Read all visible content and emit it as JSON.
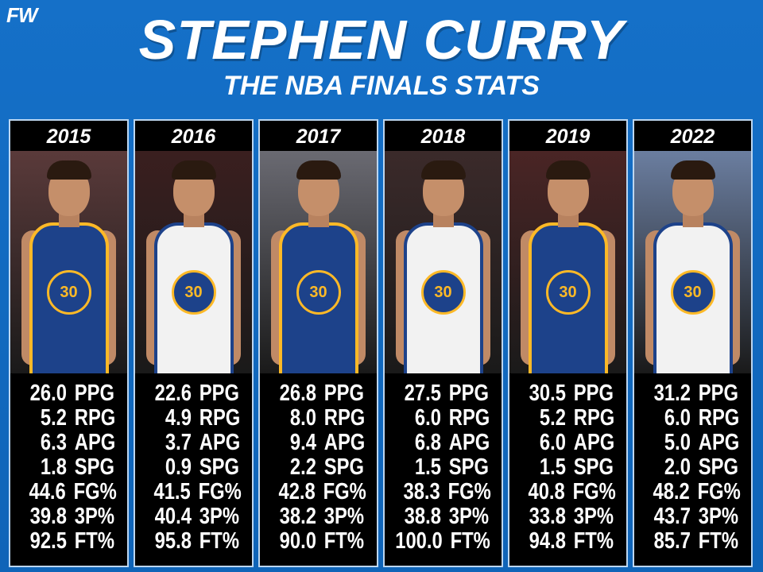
{
  "logo": "FW",
  "title": "STEPHEN CURRY",
  "subtitle": "THE NBA FINALS STATS",
  "colors": {
    "background": "#1570c8",
    "panel": "#000000",
    "text": "#ffffff",
    "jersey_blue": "#1d428a",
    "jersey_gold": "#fdb927",
    "jersey_white": "#f2f2f2"
  },
  "stat_labels": [
    "PPG",
    "RPG",
    "APG",
    "SPG",
    "FG%",
    "3P%",
    "FT%"
  ],
  "seasons": [
    {
      "year": "2015",
      "jersey": "blue",
      "stats": [
        "26.0",
        "5.2",
        "6.3",
        "1.8",
        "44.6",
        "39.8",
        "92.5"
      ]
    },
    {
      "year": "2016",
      "jersey": "white",
      "stats": [
        "22.6",
        "4.9",
        "3.7",
        "0.9",
        "41.5",
        "40.4",
        "95.8"
      ]
    },
    {
      "year": "2017",
      "jersey": "blue",
      "stats": [
        "26.8",
        "8.0",
        "9.4",
        "2.2",
        "42.8",
        "38.2",
        "90.0"
      ]
    },
    {
      "year": "2018",
      "jersey": "white",
      "stats": [
        "27.5",
        "6.0",
        "6.8",
        "1.5",
        "38.3",
        "38.8",
        "100.0"
      ]
    },
    {
      "year": "2019",
      "jersey": "blue",
      "stats": [
        "30.5",
        "5.2",
        "6.0",
        "1.5",
        "40.8",
        "33.8",
        "94.8"
      ]
    },
    {
      "year": "2022",
      "jersey": "white",
      "stats": [
        "31.2",
        "6.0",
        "5.0",
        "2.0",
        "48.2",
        "43.7",
        "85.7"
      ]
    }
  ],
  "jersey_number": "30"
}
